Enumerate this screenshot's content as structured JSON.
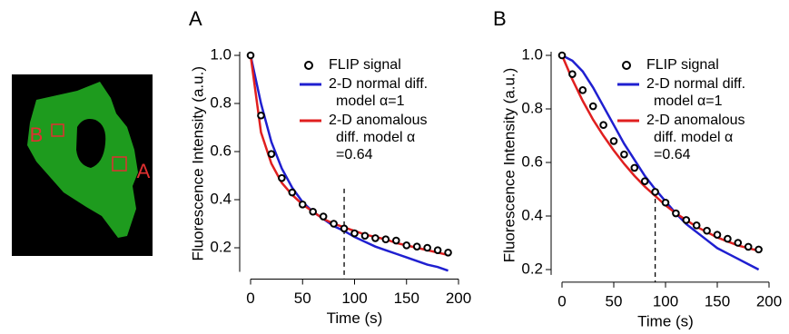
{
  "image": {
    "labels": [
      "B",
      "A"
    ]
  },
  "chart_data": [
    {
      "type": "line",
      "panel": "A",
      "xlabel": "Time (s)",
      "ylabel": "Fluorescence Intensity (a.u.)",
      "x": [
        0,
        10,
        20,
        30,
        40,
        50,
        60,
        70,
        80,
        90,
        100,
        110,
        120,
        130,
        140,
        150,
        160,
        170,
        180,
        190
      ],
      "xlim": [
        0,
        200
      ],
      "xticks": [
        0,
        50,
        100,
        150,
        200
      ],
      "ylim": [
        0.1,
        1.0
      ],
      "yticks": [
        0.2,
        0.4,
        0.6,
        0.8,
        {
          "value": 1.0,
          "label": "1.0"
        }
      ],
      "vline": 90,
      "series": [
        {
          "name": "FLIP signal",
          "color": "#000000",
          "mode": "markers",
          "values": [
            1.0,
            0.75,
            0.59,
            0.49,
            0.43,
            0.38,
            0.35,
            0.33,
            0.3,
            0.28,
            0.26,
            0.25,
            0.24,
            0.235,
            0.23,
            0.21,
            0.205,
            0.2,
            0.19,
            0.18
          ]
        },
        {
          "name": "2-D normal diff. model α=1",
          "color": "#1f1fd0",
          "mode": "lines",
          "values": [
            1.0,
            0.8,
            0.64,
            0.53,
            0.45,
            0.39,
            0.35,
            0.32,
            0.29,
            0.27,
            0.245,
            0.225,
            0.205,
            0.19,
            0.175,
            0.16,
            0.145,
            0.13,
            0.12,
            0.105
          ]
        },
        {
          "name": "2-D anomalous diff. model α =0.64",
          "color": "#e01f1f",
          "mode": "lines",
          "values": [
            1.0,
            0.68,
            0.55,
            0.47,
            0.42,
            0.38,
            0.35,
            0.32,
            0.3,
            0.285,
            0.27,
            0.255,
            0.245,
            0.235,
            0.22,
            0.21,
            0.2,
            0.19,
            0.18,
            0.17
          ]
        }
      ]
    },
    {
      "type": "line",
      "panel": "B",
      "xlabel": "Time (s)",
      "ylabel": "Fluorescence Intensity (a.u.)",
      "x": [
        0,
        10,
        20,
        30,
        40,
        50,
        60,
        70,
        80,
        90,
        100,
        110,
        120,
        130,
        140,
        150,
        160,
        170,
        180,
        190
      ],
      "xlim": [
        0,
        200
      ],
      "xticks": [
        0,
        50,
        100,
        150,
        200
      ],
      "ylim": [
        0.18,
        1.0
      ],
      "yticks": [
        0.2,
        0.4,
        0.6,
        0.8,
        {
          "value": 1.0,
          "label": "1.0"
        }
      ],
      "vline": 90,
      "series": [
        {
          "name": "FLIP signal",
          "color": "#000000",
          "mode": "markers",
          "values": [
            1.0,
            0.93,
            0.87,
            0.81,
            0.74,
            0.68,
            0.63,
            0.58,
            0.53,
            0.49,
            0.45,
            0.41,
            0.385,
            0.365,
            0.345,
            0.33,
            0.315,
            0.3,
            0.285,
            0.275
          ]
        },
        {
          "name": "2-D normal diff. model α=1",
          "color": "#1f1fd0",
          "mode": "lines",
          "values": [
            1.0,
            0.98,
            0.94,
            0.88,
            0.81,
            0.74,
            0.67,
            0.61,
            0.55,
            0.5,
            0.455,
            0.41,
            0.37,
            0.34,
            0.31,
            0.28,
            0.26,
            0.24,
            0.22,
            0.2
          ]
        },
        {
          "name": "2-D anomalous diff. model α =0.64",
          "color": "#e01f1f",
          "mode": "lines",
          "values": [
            1.0,
            0.91,
            0.83,
            0.76,
            0.7,
            0.645,
            0.595,
            0.55,
            0.51,
            0.475,
            0.44,
            0.41,
            0.385,
            0.36,
            0.34,
            0.32,
            0.305,
            0.29,
            0.28,
            0.27
          ]
        }
      ]
    }
  ]
}
